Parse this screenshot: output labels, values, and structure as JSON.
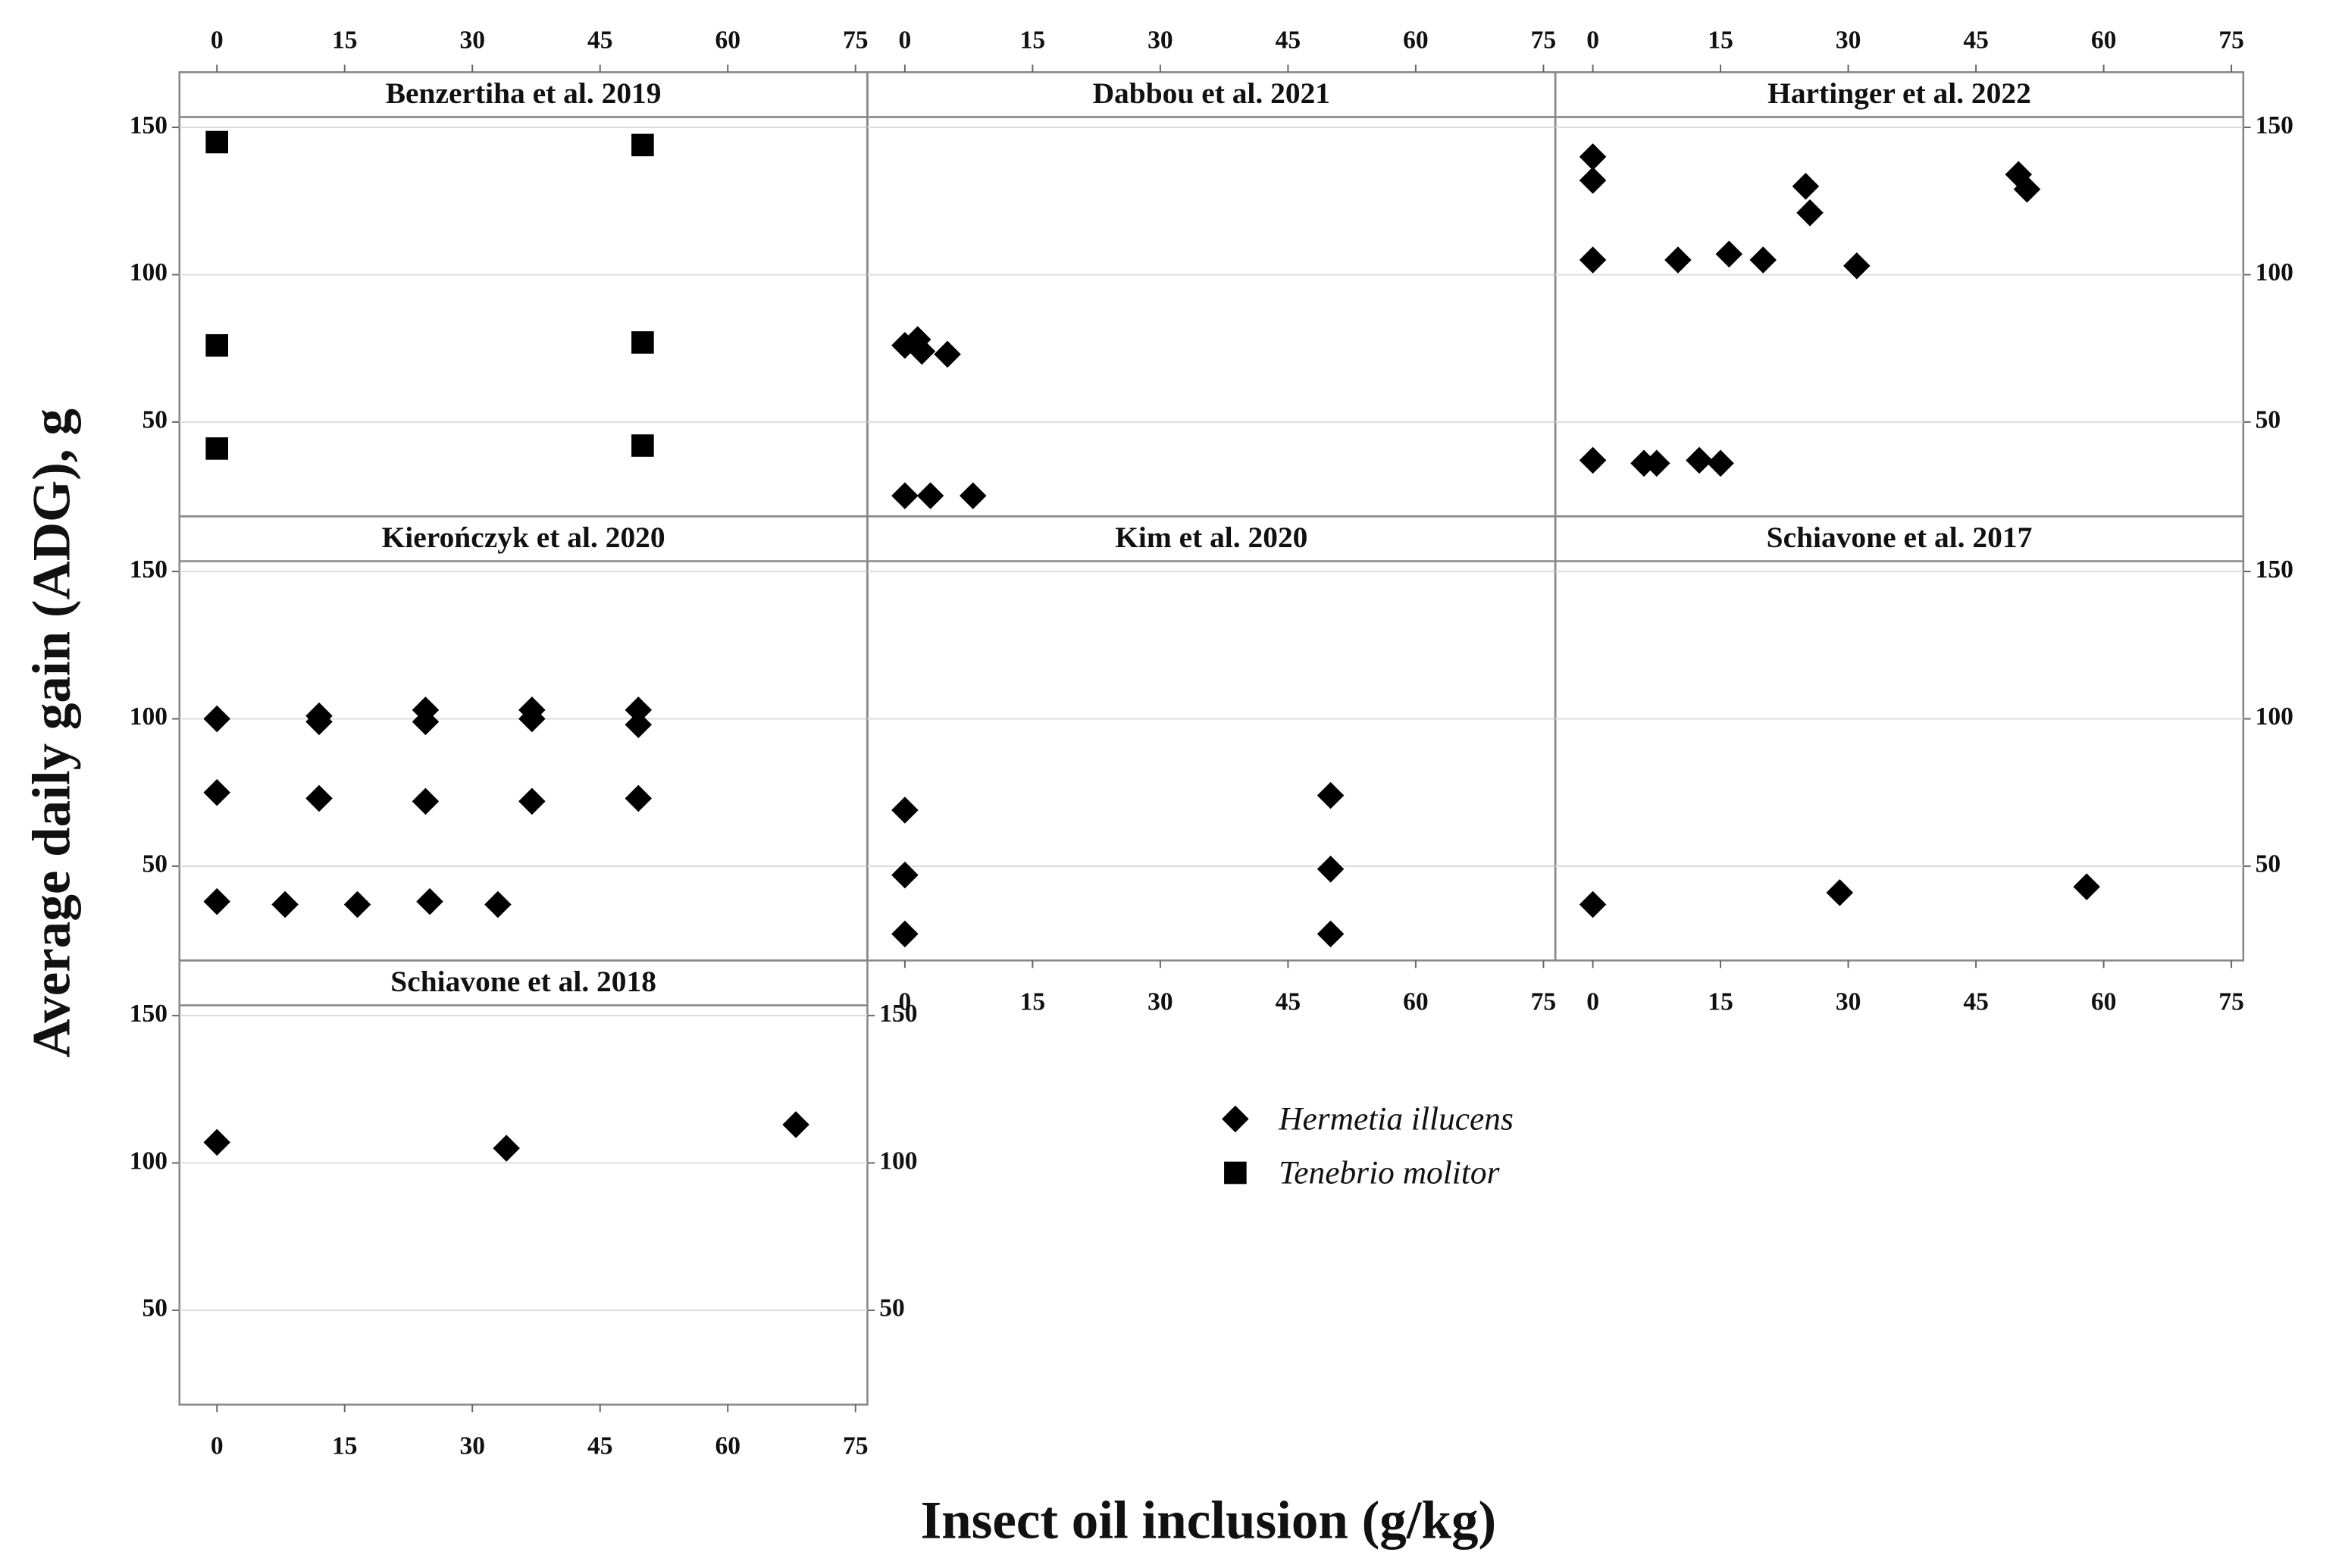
{
  "axes": {
    "y_label": "Average daily gain (ADG), g",
    "x_label": "Insect oil inclusion (g/kg)"
  },
  "chart_data": [
    {
      "type": "scatter",
      "title": "Benzertiha et al. 2019",
      "series": [
        {
          "name": "Tenebrio molitor",
          "color": "#000000",
          "marker": "square",
          "x": [
            0,
            0,
            0,
            50,
            50,
            50
          ],
          "values": [
            145,
            76,
            41,
            144,
            77,
            42
          ]
        }
      ],
      "xlim": [
        -4.4,
        76.4
      ],
      "ylim": [
        18,
        153.5
      ],
      "xticks": [
        0,
        15,
        30,
        45,
        60,
        75
      ],
      "yticks": [
        50,
        100,
        150
      ],
      "grid": true
    },
    {
      "type": "scatter",
      "title": "Dabbou et al. 2021",
      "series": [
        {
          "name": "Hermetia illucens",
          "color": "#000000",
          "marker": "diamond",
          "x": [
            0,
            1.5,
            2,
            5,
            0,
            3,
            8
          ],
          "values": [
            76,
            78,
            74,
            73,
            25,
            25,
            25
          ]
        }
      ],
      "xlim": [
        -4.4,
        76.4
      ],
      "ylim": [
        18,
        153.5
      ],
      "xticks": [
        0,
        15,
        30,
        45,
        60,
        75
      ],
      "yticks": [
        50,
        100,
        150
      ],
      "grid": true
    },
    {
      "type": "scatter",
      "title": "Hartinger et al. 2022",
      "series": [
        {
          "name": "Hermetia illucens",
          "color": "#000000",
          "marker": "diamond",
          "x": [
            0,
            0,
            0,
            0,
            6,
            7.5,
            10,
            12.5,
            15,
            16,
            20,
            25,
            25.5,
            31,
            50,
            51
          ],
          "values": [
            140,
            132,
            105,
            37,
            36,
            36,
            105,
            37,
            36,
            107,
            105,
            130,
            121,
            103,
            134,
            129
          ]
        }
      ],
      "xlim": [
        -4.4,
        76.4
      ],
      "ylim": [
        18,
        153.5
      ],
      "xticks": [
        0,
        15,
        30,
        45,
        60,
        75
      ],
      "yticks": [
        50,
        100,
        150
      ],
      "grid": true
    },
    {
      "type": "scatter",
      "title": "Kierończyk et al. 2020",
      "series": [
        {
          "name": "Hermetia illucens",
          "color": "#000000",
          "marker": "diamond",
          "x": [
            0,
            0,
            12,
            12,
            12,
            24.5,
            24.5,
            24.5,
            37,
            37,
            37,
            49.5,
            49.5,
            49.5,
            0,
            8,
            16.5,
            25,
            33
          ],
          "values": [
            100,
            75,
            101,
            99,
            73,
            103,
            99,
            72,
            103,
            100,
            72,
            103,
            98,
            73,
            38,
            37,
            37,
            38,
            37
          ]
        }
      ],
      "xlim": [
        -4.4,
        76.4
      ],
      "ylim": [
        18,
        153.5
      ],
      "xticks": [
        0,
        15,
        30,
        45,
        60,
        75
      ],
      "yticks": [
        50,
        100,
        150
      ],
      "grid": true
    },
    {
      "type": "scatter",
      "title": "Kim et al. 2020",
      "series": [
        {
          "name": "Hermetia illucens",
          "color": "#000000",
          "marker": "diamond",
          "x": [
            0,
            0,
            0,
            50,
            50,
            50
          ],
          "values": [
            69,
            47,
            27,
            74,
            49,
            27
          ]
        }
      ],
      "xlim": [
        -4.4,
        76.4
      ],
      "ylim": [
        18,
        153.5
      ],
      "xticks": [
        0,
        15,
        30,
        45,
        60,
        75
      ],
      "yticks": [
        50,
        100,
        150
      ],
      "grid": true
    },
    {
      "type": "scatter",
      "title": "Schiavone et al. 2017",
      "series": [
        {
          "name": "Hermetia illucens",
          "color": "#000000",
          "marker": "diamond",
          "x": [
            0,
            29,
            58
          ],
          "values": [
            37,
            41,
            43
          ]
        }
      ],
      "xlim": [
        -4.4,
        76.4
      ],
      "ylim": [
        18,
        153.5
      ],
      "xticks": [
        0,
        15,
        30,
        45,
        60,
        75
      ],
      "yticks": [
        50,
        100,
        150
      ],
      "grid": true
    },
    {
      "type": "scatter",
      "title": "Schiavone et al. 2018",
      "series": [
        {
          "name": "Hermetia illucens",
          "color": "#000000",
          "marker": "diamond",
          "x": [
            0,
            34,
            68
          ],
          "values": [
            107,
            105,
            113
          ]
        }
      ],
      "xlim": [
        -4.4,
        76.4
      ],
      "ylim": [
        18,
        153.5
      ],
      "xticks": [
        0,
        15,
        30,
        45,
        60,
        75
      ],
      "yticks": [
        50,
        100,
        150
      ],
      "grid": true
    }
  ]
}
